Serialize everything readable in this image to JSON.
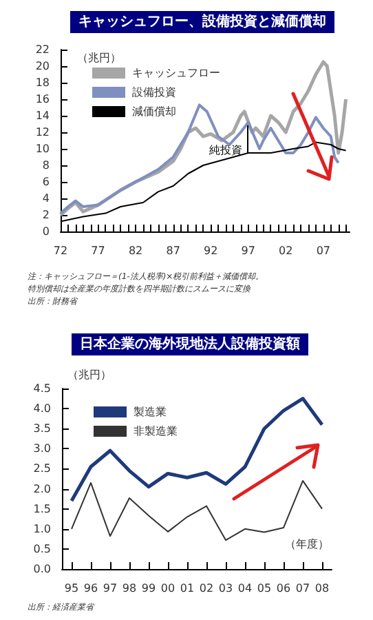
{
  "chart_data": [
    {
      "type": "line",
      "title": "キャッシュフロー、設備投資と減価償却",
      "ylabel": "（兆円）",
      "xlim": [
        1972,
        2010.5
      ],
      "ylim": [
        0,
        22
      ],
      "yticks": [
        0,
        2,
        4,
        6,
        8,
        10,
        12,
        14,
        16,
        18,
        20,
        22
      ],
      "xticks": [
        {
          "value": 1972,
          "label": "72"
        },
        {
          "value": 1973,
          "label": null
        },
        {
          "value": 1974,
          "label": null
        },
        {
          "value": 1975,
          "label": null
        },
        {
          "value": 1976,
          "label": null
        },
        {
          "value": 1977,
          "label": "77"
        },
        {
          "value": 1978,
          "label": null
        },
        {
          "value": 1979,
          "label": null
        },
        {
          "value": 1980,
          "label": null
        },
        {
          "value": 1981,
          "label": null
        },
        {
          "value": 1982,
          "label": "82"
        },
        {
          "value": 1983,
          "label": null
        },
        {
          "value": 1984,
          "label": null
        },
        {
          "value": 1985,
          "label": null
        },
        {
          "value": 1986,
          "label": null
        },
        {
          "value": 1987,
          "label": "87"
        },
        {
          "value": 1988,
          "label": null
        },
        {
          "value": 1989,
          "label": null
        },
        {
          "value": 1990,
          "label": null
        },
        {
          "value": 1991,
          "label": null
        },
        {
          "value": 1992,
          "label": "92"
        },
        {
          "value": 1993,
          "label": null
        },
        {
          "value": 1994,
          "label": null
        },
        {
          "value": 1995,
          "label": null
        },
        {
          "value": 1996,
          "label": null
        },
        {
          "value": 1997,
          "label": "97"
        },
        {
          "value": 1998,
          "label": null
        },
        {
          "value": 1999,
          "label": null
        },
        {
          "value": 2000,
          "label": null
        },
        {
          "value": 2001,
          "label": null
        },
        {
          "value": 2002,
          "label": "02"
        },
        {
          "value": 2003,
          "label": null
        },
        {
          "value": 2004,
          "label": null
        },
        {
          "value": 2005,
          "label": null
        },
        {
          "value": 2006,
          "label": null
        },
        {
          "value": 2007,
          "label": "07"
        },
        {
          "value": 2008,
          "label": null
        },
        {
          "value": 2009,
          "label": null
        },
        {
          "value": 2010,
          "label": null
        }
      ],
      "legend": "top left",
      "grid": false,
      "series": [
        {
          "name": "キャッシュフロー",
          "color": "#a6a6a6",
          "x": [
            1972,
            1973,
            1974,
            1975,
            1977,
            1980,
            1982,
            1985,
            1987,
            1988,
            1989,
            1990,
            1991,
            1992,
            1993.5,
            1995,
            1996,
            1996.5,
            1997.5,
            1998,
            1999,
            2000,
            2001,
            2002,
            2003,
            2004,
            2005,
            2006,
            2007,
            2007.5,
            2008,
            2008.5,
            2009,
            2009.5,
            2010
          ],
          "values": [
            2.0,
            2.8,
            3.5,
            2.4,
            3.2,
            5.0,
            6.0,
            7.2,
            8.5,
            10.0,
            12.0,
            12.5,
            11.5,
            11.8,
            11.0,
            12.0,
            14.0,
            14.5,
            12.0,
            12.5,
            11.5,
            14.0,
            13.2,
            12.0,
            14.5,
            15.5,
            17.0,
            19.0,
            20.5,
            20.0,
            17.0,
            14.0,
            9.5,
            12.0,
            16.0
          ]
        },
        {
          "name": "設備投資",
          "color": "#7f8fc0",
          "x": [
            1972,
            1973,
            1974,
            1975,
            1977,
            1980,
            1982,
            1985,
            1987,
            1989,
            1990.5,
            1991.5,
            1993,
            1994.5,
            1996,
            1997,
            1998.5,
            1999,
            2000,
            2001,
            2002,
            2003,
            2004,
            2005,
            2006,
            2007,
            2008,
            2008.5,
            2009
          ],
          "values": [
            2.2,
            3.0,
            3.7,
            3.0,
            3.2,
            5.0,
            6.0,
            7.5,
            9.0,
            12.0,
            15.3,
            14.5,
            11.5,
            10.5,
            12.0,
            13.2,
            10.0,
            11.0,
            12.5,
            11.0,
            9.5,
            9.5,
            10.5,
            12.0,
            13.8,
            12.5,
            11.5,
            9.0,
            8.3
          ]
        },
        {
          "name": "減価償却",
          "color": "#000000",
          "x": [
            1972,
            1975,
            1978,
            1980,
            1983,
            1985,
            1987,
            1989,
            1991,
            1993,
            1995,
            1997,
            2000,
            2003,
            2005,
            2006,
            2008,
            2009,
            2010
          ],
          "values": [
            1.2,
            1.8,
            2.2,
            3.0,
            3.5,
            4.8,
            5.5,
            7.0,
            8.0,
            8.5,
            9.0,
            9.5,
            9.5,
            10.0,
            10.3,
            10.8,
            10.5,
            10.0,
            9.8
          ]
        }
      ],
      "annotations": [
        {
          "text": "純投資",
          "x": 1994,
          "y": 9.8
        },
        "注：キャッシュフロー＝(1-法人税率)×税引前利益＋減価償却。",
        "特別償却は全産業の年度計数を四半期計数にスムースに変換",
        "出所：財務省"
      ]
    },
    {
      "type": "line",
      "title": "日本企業の海外現地法人設備投資額",
      "ylabel": "（兆円）",
      "xlabel": "（年度）",
      "categories": [
        "95",
        "96",
        "97",
        "98",
        "99",
        "00",
        "01",
        "02",
        "03",
        "04",
        "05",
        "06",
        "07",
        "08"
      ],
      "ylim": [
        0,
        4.5
      ],
      "yticks": [
        {
          "value": 0,
          "label": "0.0"
        },
        {
          "value": 0.5,
          "label": "0.5"
        },
        {
          "value": 1,
          "label": "1.0"
        },
        {
          "value": 1.5,
          "label": "1.5"
        },
        {
          "value": 2,
          "label": "2.0"
        },
        {
          "value": 2.5,
          "label": "2.5"
        },
        {
          "value": 3,
          "label": "3.0"
        },
        {
          "value": 3.5,
          "label": "3.5"
        },
        {
          "value": 4,
          "label": "4.0"
        },
        {
          "value": 4.5,
          "label": "4.5"
        }
      ],
      "legend": "top left",
      "grid": false,
      "series": [
        {
          "name": "製造業",
          "color": "#1f3a7a",
          "values": [
            1.7,
            2.55,
            2.95,
            2.45,
            2.05,
            2.38,
            2.28,
            2.4,
            2.12,
            2.55,
            3.5,
            3.95,
            4.25,
            3.6
          ]
        },
        {
          "name": "非製造業",
          "color": "#333333",
          "values": [
            1.0,
            2.15,
            0.82,
            1.77,
            1.33,
            0.93,
            1.3,
            1.57,
            0.72,
            1.0,
            0.92,
            1.03,
            2.2,
            1.5
          ]
        }
      ],
      "annotations": [
        "出所：経済産業省"
      ]
    }
  ]
}
